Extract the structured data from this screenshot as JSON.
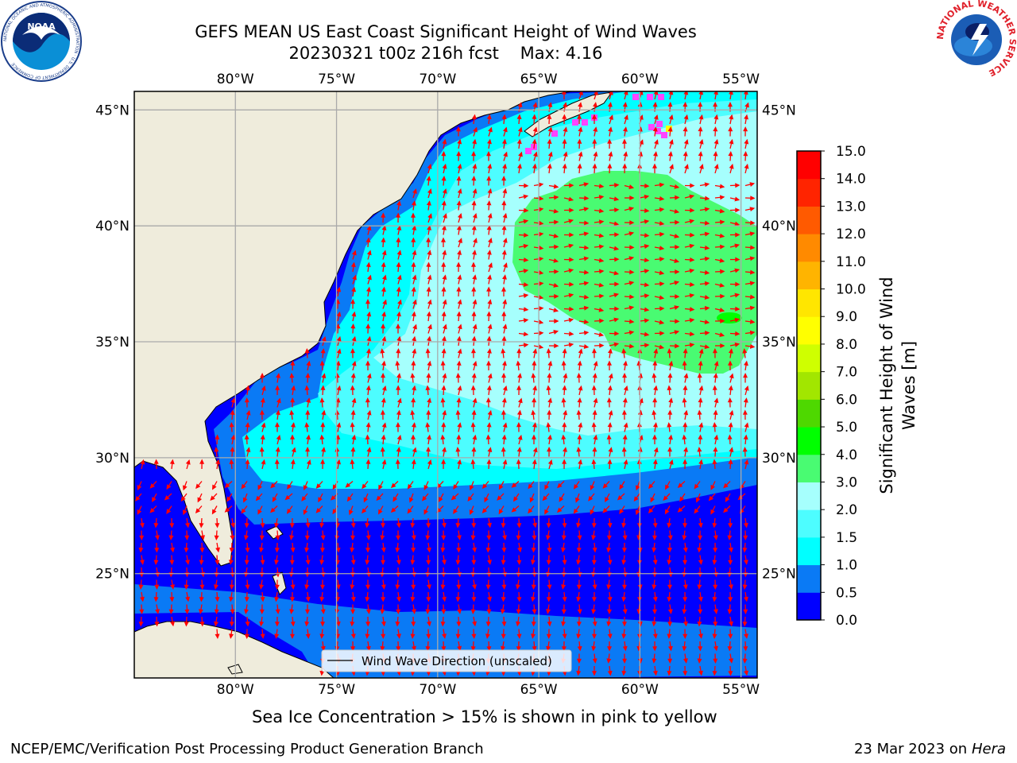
{
  "title": {
    "line1": "GEFS MEAN US East Coast Significant Height of Wind Waves",
    "line2": "20230321 t00z 216h fcst",
    "max_label": "Max: 4.16"
  },
  "map": {
    "lon_ticks": [
      "80°W",
      "75°W",
      "70°W",
      "65°W",
      "60°W",
      "55°W"
    ],
    "lat_ticks": [
      "45°N",
      "40°N",
      "35°N",
      "30°N",
      "25°N"
    ],
    "lon_values": [
      -80,
      -75,
      -70,
      -65,
      -60,
      -55
    ],
    "lat_values": [
      45,
      40,
      35,
      30,
      25
    ],
    "extent": {
      "lon_min": -85,
      "lon_max": -54.2,
      "lat_min": 20.5,
      "lat_max": 45.8
    },
    "legend_label": "Wind Wave Direction (unscaled)",
    "land_color": "#efecdc",
    "arrow_color": "#ff0000"
  },
  "colorbar": {
    "label": "Significant Height of Wind Waves [m]",
    "ticks": [
      "0.0",
      "0.5",
      "1.0",
      "1.5",
      "2.0",
      "3.0",
      "4.0",
      "5.0",
      "6.0",
      "7.0",
      "8.0",
      "9.0",
      "10.0",
      "11.0",
      "12.0",
      "13.0",
      "14.0",
      "15.0"
    ],
    "colors": [
      "#0000ff",
      "#0a7af5",
      "#00ffff",
      "#4dfdff",
      "#a6fffd",
      "#49fb72",
      "#00ff00",
      "#4ed800",
      "#a2e600",
      "#cfff00",
      "#ffff00",
      "#ffe600",
      "#ffb400",
      "#ff8a00",
      "#ff5a00",
      "#ff2400",
      "#ff0000"
    ]
  },
  "sea_ice_note": "Sea Ice Concentration > 15% is shown in pink to yellow",
  "footer": {
    "left": "NCEP/EMC/Verification Post Processing Product Generation Branch",
    "date": "23 Mar 2023 on",
    "machine": "Hera"
  },
  "logos": {
    "noaa": "NOAA",
    "noaa_ring": "NATIONAL OCEANIC AND ATMOSPHERIC ADMINISTRATION · U.S. DEPARTMENT OF COMMERCE",
    "nws_ring": "NATIONAL WEATHER SERVICE"
  }
}
